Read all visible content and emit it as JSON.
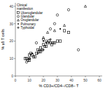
{
  "chart_data": {
    "type": "scatter",
    "xlabel": "% CD3+/CD4−/CD8− T",
    "ylabel": "% γδ T cells",
    "legend_title": "Clinical\nmanifestion",
    "legend": "upper left",
    "xlim": [
      0,
      62
    ],
    "ylim": [
      0,
      42
    ],
    "xticks": [
      0,
      10,
      20,
      30,
      40,
      50,
      60
    ],
    "yticks": [
      0,
      10,
      20,
      30,
      40
    ],
    "series": [
      {
        "name": "Ulceroglandular",
        "color": "black",
        "marker": "square",
        "x": [
          7,
          8,
          9,
          10,
          10,
          11,
          12,
          13,
          14,
          15,
          16,
          17,
          18,
          18,
          19,
          20,
          21,
          22,
          23,
          24,
          25,
          26,
          27,
          28,
          30,
          32,
          35,
          38
        ],
        "values": [
          10,
          10,
          9,
          9,
          12,
          13,
          12,
          11,
          11,
          13,
          15,
          14,
          14,
          16,
          15,
          18,
          17,
          17,
          19,
          20,
          19,
          18,
          19,
          19,
          20,
          20,
          26,
          25
        ]
      },
      {
        "name": "Glandular",
        "color": "black",
        "marker": "circle",
        "x": [
          8,
          10,
          15,
          20,
          22,
          25,
          28,
          30,
          38,
          45
        ],
        "values": [
          8,
          10,
          19,
          21,
          20,
          27,
          30,
          35,
          38,
          15
        ]
      },
      {
        "name": "Oroglandular",
        "color": "black",
        "marker": "triangle",
        "x": [
          20,
          23,
          28,
          35,
          50
        ],
        "values": [
          22,
          25,
          26,
          29,
          40
        ]
      },
      {
        "name": "Pulmonary",
        "color": "black",
        "marker": "point",
        "x": [
          12,
          20,
          32
        ],
        "values": [
          13,
          20,
          27
        ]
      },
      {
        "name": "Typhoidal",
        "color": "black",
        "marker": "plus",
        "x": [
          10,
          16,
          20,
          22,
          25
        ],
        "values": [
          10,
          13,
          15,
          19,
          21
        ]
      }
    ]
  }
}
